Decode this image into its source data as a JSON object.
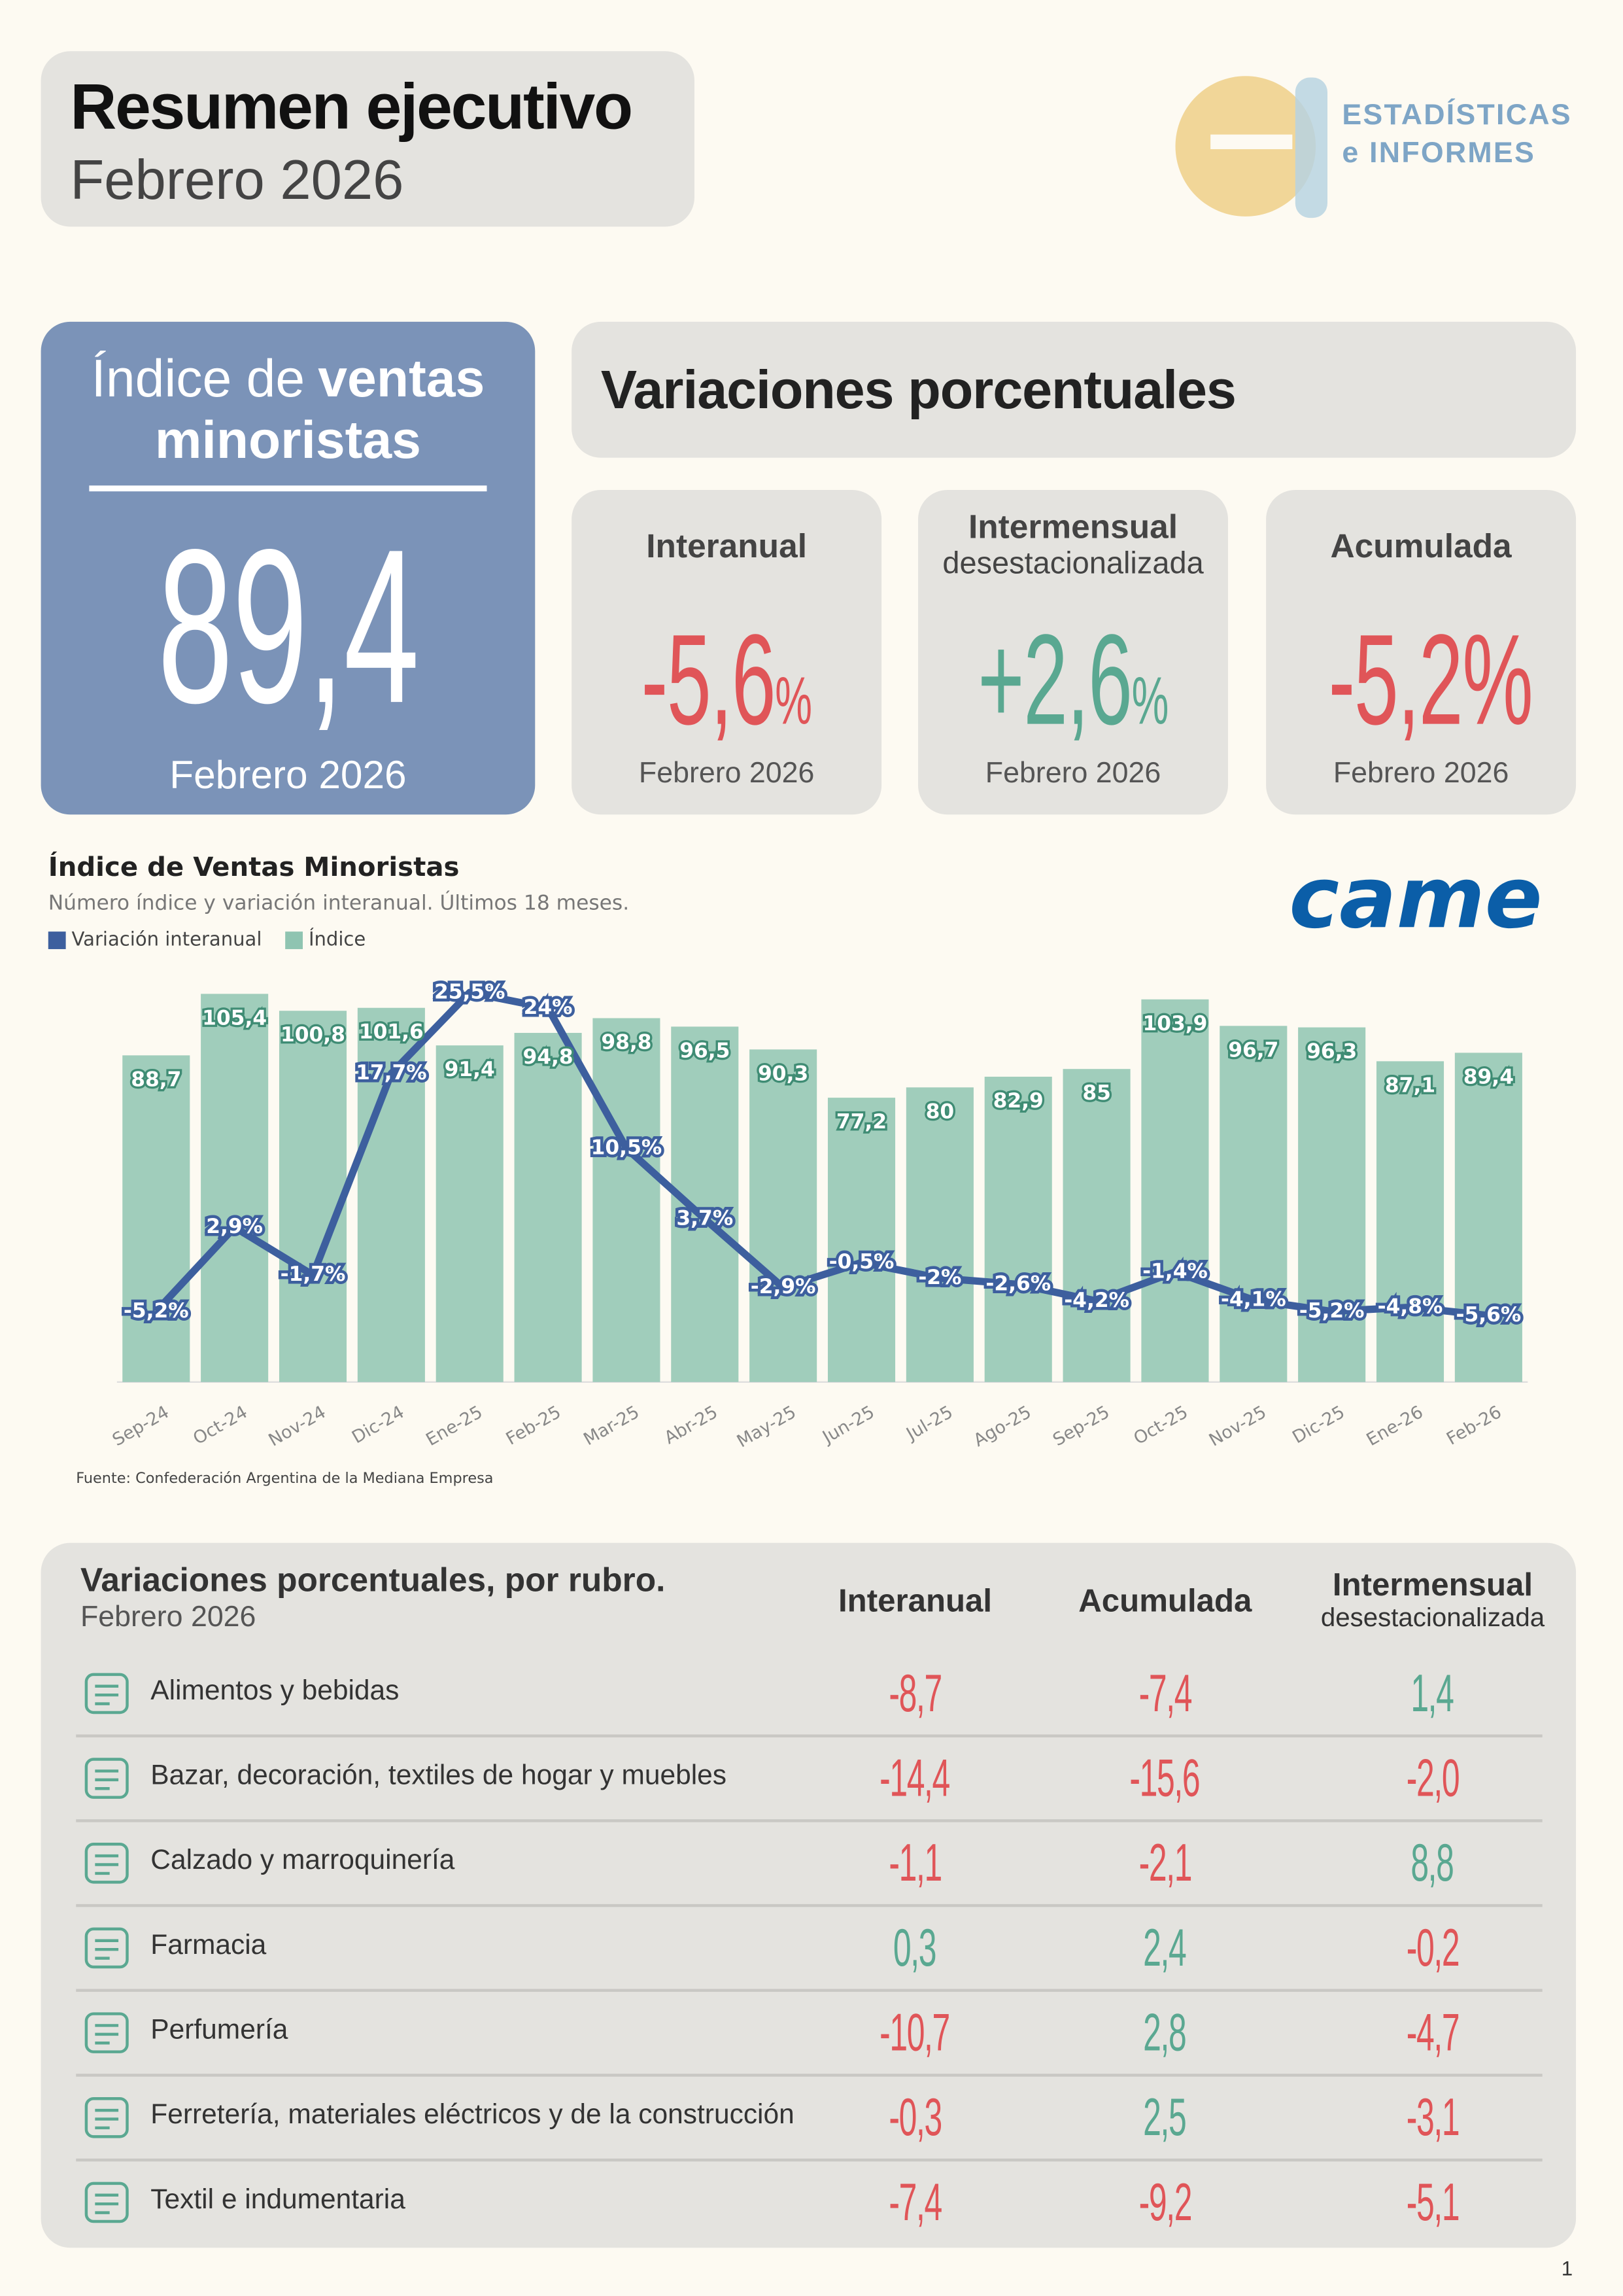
{
  "header": {
    "title": "Resumen ejecutivo",
    "subtitle": "Febrero 2026",
    "logo_line1": "ESTADÍSTICAS",
    "logo_line2": "e INFORMES"
  },
  "index_card": {
    "title_regular": "Índice de",
    "title_bold": "ventas minoristas",
    "value": "89,4",
    "period": "Febrero 2026"
  },
  "variations": {
    "title": "Variaciones porcentuales",
    "cards": [
      {
        "label": "Interanual",
        "value": "-5,6",
        "unit": "%",
        "period": "Febrero 2026"
      },
      {
        "label": "Intermensual",
        "sublabel": "desestacionalizada",
        "value": "+2,6",
        "unit": "%",
        "period": "Febrero 2026"
      },
      {
        "label": "Acumulada",
        "value": "-5,2",
        "unit": "%",
        "period": "Febrero 2026"
      }
    ]
  },
  "chart_data": {
    "type": "combo",
    "title": "Índice de Ventas Minoristas",
    "subtitle": "Número índice y variación interanual. Últimos 18 meses.",
    "source": "Fuente: Confederación Argentina de la Mediana Empresa",
    "source_logo": "came",
    "categories": [
      "Sep-24",
      "Oct-24",
      "Nov-24",
      "Dic-24",
      "Ene-25",
      "Feb-25",
      "Mar-25",
      "Abr-25",
      "May-25",
      "Jun-25",
      "Jul-25",
      "Ago-25",
      "Sep-25",
      "Oct-25",
      "Nov-25",
      "Dic-25",
      "Ene-26",
      "Feb-26"
    ],
    "series": [
      {
        "name": "Variación interanual",
        "type": "line",
        "axis": "y2",
        "color": "#3d5f9e",
        "values": [
          -5.2,
          2.9,
          -1.7,
          17.7,
          25.5,
          24,
          10.5,
          3.7,
          -2.9,
          -0.5,
          -2,
          -2.6,
          -4.2,
          -1.4,
          -4.1,
          -5.2,
          -4.8,
          -5.6
        ],
        "value_labels": [
          "-5,2%",
          "2,9%",
          "-1,7%",
          "17,7%",
          "25,5%",
          "24%",
          "10,5%",
          "3,7%",
          "-2,9%",
          "-0,5%",
          "-2%",
          "-2,6%",
          "-4,2%",
          "-1,4%",
          "-4,1%",
          "-5,2%",
          "-4,8%",
          "-5,6%"
        ]
      },
      {
        "name": "Índice",
        "type": "bar",
        "color": "#8fc4b1",
        "values": [
          88.7,
          105.4,
          100.8,
          101.6,
          91.4,
          94.8,
          98.8,
          96.5,
          90.3,
          77.2,
          80,
          82.9,
          85,
          103.9,
          96.7,
          96.3,
          87.1,
          89.4
        ],
        "value_labels": [
          "88,7",
          "105,4",
          "100,8",
          "101,6",
          "91,4",
          "94,8",
          "98,8",
          "96,5",
          "90,3",
          "77,2",
          "80",
          "82,9",
          "85",
          "103,9",
          "96,7",
          "96,3",
          "87,1",
          "89,4"
        ]
      }
    ],
    "ylim": [
      0,
      110
    ],
    "y2lim": [
      -12,
      27
    ],
    "legend": "top-left"
  },
  "table": {
    "title": "Variaciones porcentuales, por rubro.",
    "subtitle": "Febrero 2026",
    "columns": [
      {
        "label": "Interanual"
      },
      {
        "label": "Acumulada"
      },
      {
        "label": "Intermensual",
        "sublabel": "desestacionalizada"
      }
    ],
    "rows": [
      [
        "Alimentos y bebidas",
        "-8,7",
        "-7,4",
        "1,4"
      ],
      [
        "Bazar, decoración, textiles de hogar y muebles",
        "-14,4",
        "-15,6",
        "-2,0"
      ],
      [
        "Calzado y marroquinería",
        "-1,1",
        "-2,1",
        "8,8"
      ],
      [
        "Farmacia",
        "0,3",
        "2,4",
        "-0,2"
      ],
      [
        "Perfumería",
        "-10,7",
        "2,8",
        "-4,7"
      ],
      [
        "Ferretería, materiales eléctricos y de la construcción",
        "-0,3",
        "2,5",
        "-3,1"
      ],
      [
        "Textil e indumentaria",
        "-7,4",
        "-9,2",
        "-5,1"
      ]
    ]
  },
  "page_number": "1"
}
